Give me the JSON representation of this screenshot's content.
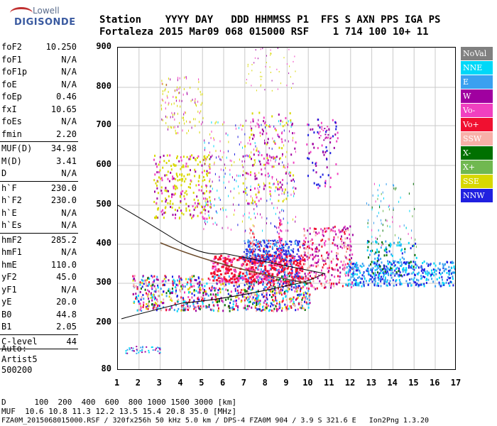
{
  "logo": {
    "line1": "Lowell",
    "line2": "DIGISONDE"
  },
  "header": {
    "line1": "Station    YYYY DAY   DDD HHMMSS P1  FFS S AXN PPS IGA PS",
    "line2": "Fortaleza 2015 Mar09 068 015000 RSF    1 714 100 10+ 11"
  },
  "params": {
    "group1": [
      {
        "label": "foF2",
        "value": "10.250"
      },
      {
        "label": "foF1",
        "value": "N/A"
      },
      {
        "label": "foF1p",
        "value": "N/A"
      },
      {
        "label": "foE",
        "value": "N/A"
      },
      {
        "label": "foEp",
        "value": "0.46"
      },
      {
        "label": "fxI",
        "value": "10.65"
      },
      {
        "label": "foEs",
        "value": "N/A"
      },
      {
        "label": "fmin",
        "value": "2.20"
      }
    ],
    "group2": [
      {
        "label": "MUF(D)",
        "value": "34.98"
      },
      {
        "label": "M(D)",
        "value": "3.41"
      },
      {
        "label": "D",
        "value": "N/A"
      }
    ],
    "group3": [
      {
        "label": "h`F",
        "value": "230.0"
      },
      {
        "label": "h`F2",
        "value": "230.0"
      },
      {
        "label": "h`E",
        "value": "N/A"
      },
      {
        "label": "h`Es",
        "value": "N/A"
      }
    ],
    "group4": [
      {
        "label": "hmF2",
        "value": "285.2"
      },
      {
        "label": "hmF1",
        "value": "N/A"
      },
      {
        "label": "hmE",
        "value": "110.0"
      },
      {
        "label": "yF2",
        "value": "45.0"
      },
      {
        "label": "yF1",
        "value": "N/A"
      },
      {
        "label": "yE",
        "value": "20.0"
      },
      {
        "label": "B0",
        "value": "44.8"
      },
      {
        "label": "B1",
        "value": "2.05"
      }
    ],
    "group5": [
      {
        "label": "C-level",
        "value": "44"
      }
    ]
  },
  "auto": {
    "line1": "Auto:",
    "line2": "Artist5",
    "line3": "500200"
  },
  "y_axis": {
    "ticks": [
      "900",
      "800",
      "700",
      "600",
      "500",
      "400",
      "300",
      "200",
      "80"
    ]
  },
  "x_axis": {
    "ticks": [
      "1",
      "2",
      "3",
      "4",
      "5",
      "6",
      "7",
      "8",
      "9",
      "10",
      "11",
      "12",
      "13",
      "14",
      "15",
      "16",
      "17"
    ]
  },
  "legend": [
    {
      "label": "NoVal",
      "color": "#808080"
    },
    {
      "label": "NNE",
      "color": "#00d8f8"
    },
    {
      "label": "E",
      "color": "#3aa0f0"
    },
    {
      "label": "W",
      "color": "#a000a0"
    },
    {
      "label": "Vo-",
      "color": "#f040c0"
    },
    {
      "label": "Vo+",
      "color": "#f01030"
    },
    {
      "label": "SSW",
      "color": "#f8b0a8"
    },
    {
      "label": "X-",
      "color": "#007000"
    },
    {
      "label": "X+",
      "color": "#70b850"
    },
    {
      "label": "SSE",
      "color": "#d8d800"
    },
    {
      "label": "NNW",
      "color": "#2020e0"
    }
  ],
  "footer": {
    "line1": "D      100  200  400  600  800 1000 1500 3000 [km]",
    "line2": "MUF  10.6 10.8 11.3 12.2 13.5 15.4 20.8 35.0 [MHz]",
    "line3": "FZA0M_2015068015000.RSF / 320fx256h 50 kHz 5.0 km / DPS-4 FZA0M 904 / 3.9 S 321.6 E   Ion2Png 1.3.20"
  }
}
